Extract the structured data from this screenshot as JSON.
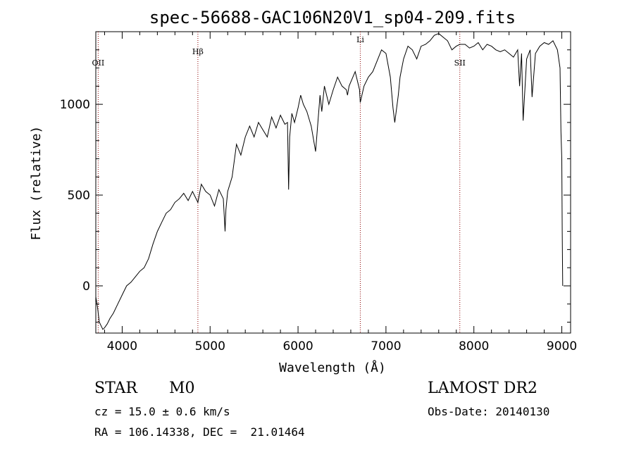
{
  "chart_data": {
    "type": "line",
    "title": "spec-56688-GAC106N20V1_sp04-209.fits",
    "xlabel": "Wavelength (Å)",
    "ylabel": "Flux (relative)",
    "xlim": [
      3700,
      9100
    ],
    "ylim": [
      -260,
      1400
    ],
    "xticks": [
      4000,
      5000,
      6000,
      7000,
      8000,
      9000
    ],
    "yticks": [
      0,
      500,
      1000
    ],
    "grid": false,
    "line_color": "#000000",
    "line_markers": [
      {
        "label": "OII",
        "x": 3727
      },
      {
        "label": "Hβ",
        "x": 4861
      },
      {
        "label": "Li",
        "x": 6708
      },
      {
        "label": "SII",
        "x": 7840
      }
    ],
    "marker_color": "#8b0000",
    "series": [
      {
        "x": [
          3700,
          3720,
          3740,
          3760,
          3780,
          3800,
          3830,
          3860,
          3900,
          3950,
          4000,
          4050,
          4100,
          4150,
          4200,
          4250,
          4300,
          4350,
          4400,
          4450,
          4500,
          4550,
          4600,
          4650,
          4700,
          4750,
          4800,
          4861,
          4900,
          4950,
          5000,
          5050,
          5100,
          5150,
          5170,
          5180,
          5200,
          5250,
          5300,
          5350,
          5400,
          5450,
          5500,
          5550,
          5600,
          5650,
          5700,
          5750,
          5800,
          5850,
          5880,
          5893,
          5905,
          5930,
          5960,
          6000,
          6030,
          6060,
          6100,
          6150,
          6200,
          6250,
          6270,
          6300,
          6350,
          6400,
          6450,
          6500,
          6550,
          6563,
          6580,
          6650,
          6700,
          6708,
          6750,
          6800,
          6850,
          6900,
          6950,
          7000,
          7050,
          7080,
          7100,
          7140,
          7160,
          7200,
          7250,
          7300,
          7350,
          7400,
          7450,
          7500,
          7550,
          7600,
          7650,
          7700,
          7750,
          7800,
          7840,
          7900,
          7950,
          8000,
          8050,
          8100,
          8150,
          8200,
          8250,
          8300,
          8350,
          8400,
          8450,
          8498,
          8520,
          8542,
          8560,
          8600,
          8640,
          8662,
          8700,
          8750,
          8800,
          8850,
          8900,
          8950,
          8980,
          8990,
          9000,
          9005,
          9010
        ],
        "y": [
          -60,
          -120,
          -200,
          -220,
          -240,
          -230,
          -210,
          -180,
          -150,
          -100,
          -50,
          0,
          20,
          50,
          80,
          100,
          150,
          230,
          300,
          350,
          400,
          420,
          460,
          480,
          510,
          470,
          520,
          460,
          560,
          520,
          500,
          440,
          530,
          480,
          300,
          420,
          520,
          600,
          780,
          720,
          820,
          880,
          820,
          900,
          860,
          820,
          930,
          870,
          940,
          890,
          900,
          530,
          820,
          950,
          900,
          980,
          1050,
          1000,
          960,
          880,
          740,
          1050,
          960,
          1100,
          1000,
          1080,
          1150,
          1100,
          1080,
          1050,
          1100,
          1180,
          1080,
          1010,
          1100,
          1150,
          1180,
          1240,
          1300,
          1280,
          1150,
          980,
          900,
          1050,
          1150,
          1250,
          1320,
          1300,
          1250,
          1320,
          1330,
          1350,
          1380,
          1390,
          1370,
          1350,
          1300,
          1320,
          1330,
          1330,
          1310,
          1320,
          1340,
          1300,
          1330,
          1320,
          1300,
          1290,
          1300,
          1280,
          1260,
          1300,
          1100,
          1280,
          910,
          1250,
          1300,
          1040,
          1280,
          1320,
          1340,
          1330,
          1350,
          1300,
          1200,
          850,
          700,
          300,
          0
        ]
      }
    ]
  },
  "info": {
    "object_type": "STAR",
    "subclass": "M0",
    "survey": "LAMOST DR2",
    "redshift_line": "cz = 15.0 ± 0.6 km/s",
    "obs_date": "Obs-Date: 20140130",
    "coords": "RA = 106.14338, DEC =  21.01464"
  }
}
